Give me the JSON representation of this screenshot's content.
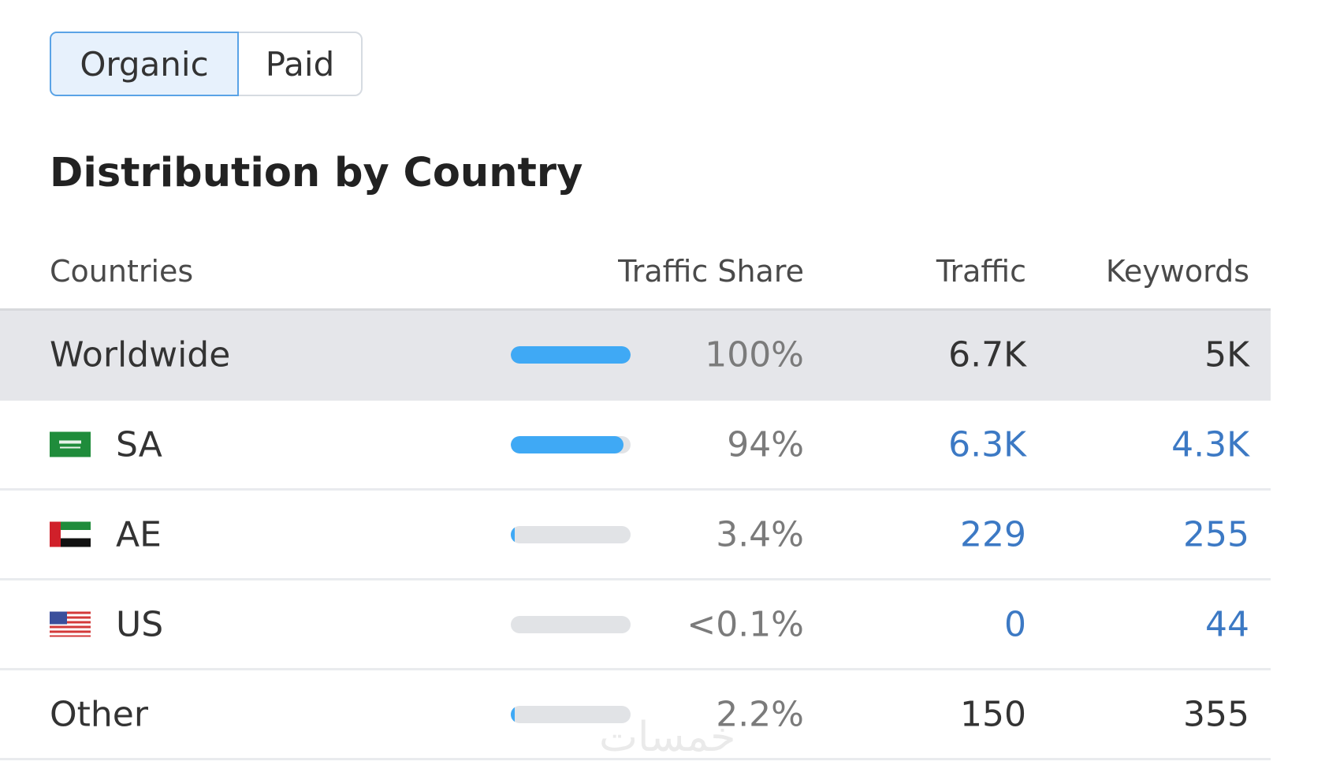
{
  "toggle": {
    "organic_label": "Organic",
    "paid_label": "Paid",
    "active": "Organic"
  },
  "heading": "Distribution by Country",
  "table": {
    "columns": {
      "countries": "Countries",
      "traffic_share": "Traffic Share",
      "traffic": "Traffic",
      "keywords": "Keywords"
    },
    "rows": [
      {
        "country": "Worldwide",
        "flag": "",
        "share_label": "100%",
        "share_fraction": 1.0,
        "traffic": "6.7K",
        "keywords": "5K"
      },
      {
        "country": "SA",
        "flag": "saudi-arabia-flag-icon",
        "share_label": "94%",
        "share_fraction": 0.94,
        "traffic": "6.3K",
        "keywords": "4.3K"
      },
      {
        "country": "AE",
        "flag": "uae-flag-icon",
        "share_label": "3.4%",
        "share_fraction": 0.034,
        "traffic": "229",
        "keywords": "255"
      },
      {
        "country": "US",
        "flag": "us-flag-icon",
        "share_label": "<0.1%",
        "share_fraction": 0.0,
        "traffic": "0",
        "keywords": "44"
      },
      {
        "country": "Other",
        "flag": "",
        "share_label": "2.2%",
        "share_fraction": 0.022,
        "traffic": "150",
        "keywords": "355"
      }
    ]
  },
  "colors": {
    "accent_blue": "#3fa9f5",
    "link_blue": "#3c79c4",
    "active_toggle_bg": "#e7f1fc",
    "active_toggle_border": "#5aa3e6"
  },
  "watermark": "خمسات"
}
